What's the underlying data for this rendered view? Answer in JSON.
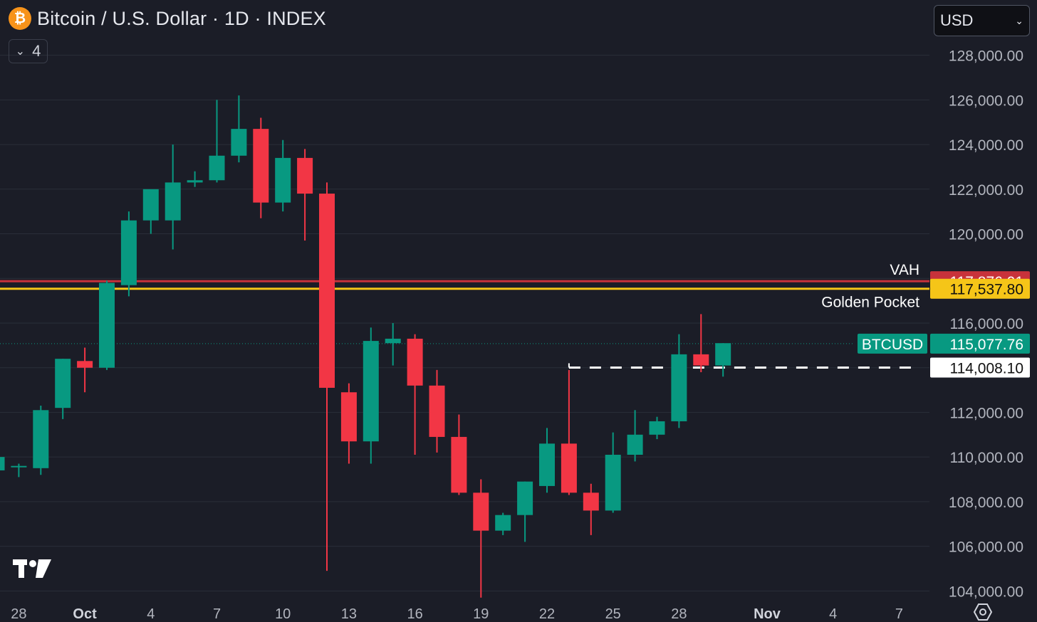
{
  "header": {
    "title": "Bitcoin / U.S. Dollar · 1D · INDEX",
    "coin_symbol": "₿",
    "indicators_count": "4"
  },
  "currency_select": {
    "value": "USD"
  },
  "icons": {
    "logo": "tradingview-logo-icon",
    "settings": "chart-settings-icon",
    "coin": "bitcoin-icon",
    "chevron": "chevron-down-icon"
  },
  "colors": {
    "background": "#1b1d27",
    "up": "#089981",
    "down": "#f23645",
    "vah": "#c8323b",
    "golden_pocket": "#f5c518",
    "grid": "#2a2e39",
    "text": "#d1d4dc"
  },
  "chart_data": {
    "type": "candlestick",
    "ylim": [
      103500,
      129200
    ],
    "y_ticks": [
      {
        "value": 104000,
        "label": "104,000.00"
      },
      {
        "value": 106000,
        "label": "106,000.00"
      },
      {
        "value": 108000,
        "label": "108,000.00"
      },
      {
        "value": 110000,
        "label": "110,000.00"
      },
      {
        "value": 112000,
        "label": "112,000.00"
      },
      {
        "value": 116000,
        "label": "116,000.00"
      },
      {
        "value": 120000,
        "label": "120,000.00"
      },
      {
        "value": 122000,
        "label": "122,000.00"
      },
      {
        "value": 124000,
        "label": "124,000.00"
      },
      {
        "value": 126000,
        "label": "126,000.00"
      },
      {
        "value": 128000,
        "label": "128,000.00"
      }
    ],
    "x_ticks": [
      {
        "index": 1,
        "label": "28",
        "bold": false
      },
      {
        "index": 4,
        "label": "Oct",
        "bold": true
      },
      {
        "index": 7,
        "label": "4",
        "bold": false
      },
      {
        "index": 10,
        "label": "7",
        "bold": false
      },
      {
        "index": 13,
        "label": "10",
        "bold": false
      },
      {
        "index": 16,
        "label": "13",
        "bold": false
      },
      {
        "index": 19,
        "label": "16",
        "bold": false
      },
      {
        "index": 22,
        "label": "19",
        "bold": false
      },
      {
        "index": 25,
        "label": "22",
        "bold": false
      },
      {
        "index": 28,
        "label": "25",
        "bold": false
      },
      {
        "index": 31,
        "label": "28",
        "bold": false
      },
      {
        "index": 35,
        "label": "Nov",
        "bold": true
      },
      {
        "index": 38,
        "label": "4",
        "bold": false
      },
      {
        "index": 41,
        "label": "7",
        "bold": false
      }
    ],
    "candles": [
      {
        "o": 109400,
        "h": 110100,
        "l": 109000,
        "c": 110000
      },
      {
        "o": 109600,
        "h": 109700,
        "l": 109100,
        "c": 109600
      },
      {
        "o": 109500,
        "h": 112300,
        "l": 109200,
        "c": 112100
      },
      {
        "o": 112200,
        "h": 114400,
        "l": 111700,
        "c": 114400
      },
      {
        "o": 114300,
        "h": 114900,
        "l": 112900,
        "c": 114000
      },
      {
        "o": 114000,
        "h": 117900,
        "l": 113900,
        "c": 117800
      },
      {
        "o": 117700,
        "h": 121000,
        "l": 117200,
        "c": 120600
      },
      {
        "o": 120600,
        "h": 121800,
        "l": 120000,
        "c": 122000
      },
      {
        "o": 120600,
        "h": 124000,
        "l": 119300,
        "c": 122300
      },
      {
        "o": 122300,
        "h": 122800,
        "l": 122100,
        "c": 122400
      },
      {
        "o": 122400,
        "h": 126000,
        "l": 122300,
        "c": 123500
      },
      {
        "o": 123500,
        "h": 126200,
        "l": 123200,
        "c": 124700
      },
      {
        "o": 124700,
        "h": 125200,
        "l": 120700,
        "c": 121400
      },
      {
        "o": 121400,
        "h": 124200,
        "l": 121000,
        "c": 123400
      },
      {
        "o": 123400,
        "h": 123800,
        "l": 119700,
        "c": 121800
      },
      {
        "o": 121800,
        "h": 122300,
        "l": 104900,
        "c": 113100
      },
      {
        "o": 112900,
        "h": 113300,
        "l": 109700,
        "c": 110700
      },
      {
        "o": 110700,
        "h": 115800,
        "l": 109700,
        "c": 115200
      },
      {
        "o": 115100,
        "h": 116000,
        "l": 114100,
        "c": 115300
      },
      {
        "o": 115300,
        "h": 115500,
        "l": 110100,
        "c": 113200
      },
      {
        "o": 113200,
        "h": 113900,
        "l": 110200,
        "c": 110900
      },
      {
        "o": 110900,
        "h": 111900,
        "l": 108300,
        "c": 108400
      },
      {
        "o": 108400,
        "h": 109000,
        "l": 103700,
        "c": 106700
      },
      {
        "o": 106700,
        "h": 107500,
        "l": 106500,
        "c": 107400
      },
      {
        "o": 107400,
        "h": 108900,
        "l": 106200,
        "c": 108900
      },
      {
        "o": 108700,
        "h": 111300,
        "l": 108400,
        "c": 110600
      },
      {
        "o": 110600,
        "h": 113900,
        "l": 108300,
        "c": 108400
      },
      {
        "o": 108400,
        "h": 108800,
        "l": 106500,
        "c": 107600
      },
      {
        "o": 107600,
        "h": 111100,
        "l": 107500,
        "c": 110100
      },
      {
        "o": 110100,
        "h": 112100,
        "l": 109800,
        "c": 111000
      },
      {
        "o": 111000,
        "h": 111800,
        "l": 110800,
        "c": 111600
      },
      {
        "o": 111600,
        "h": 115500,
        "l": 111300,
        "c": 114600
      },
      {
        "o": 114600,
        "h": 116400,
        "l": 113800,
        "c": 114100
      },
      {
        "o": 114100,
        "h": 115100,
        "l": 113600,
        "c": 115100
      }
    ],
    "levels": [
      {
        "name": "VAH",
        "value": 117876.01,
        "label": "117,876.01",
        "color": "#c8323b",
        "text_color": "#ffffff",
        "style": "solid"
      },
      {
        "name": "Golden Pocket",
        "value": 117537.8,
        "label": "117,537.80",
        "color": "#f5c518",
        "text_color": "#111111",
        "style": "solid"
      }
    ],
    "current": {
      "symbol": "BTCUSD",
      "value": 115077.76,
      "label": "115,077.76",
      "color": "#089981"
    },
    "dashed_level": {
      "value": 114008.1,
      "label": "114,008.10",
      "start_index": 26
    }
  }
}
